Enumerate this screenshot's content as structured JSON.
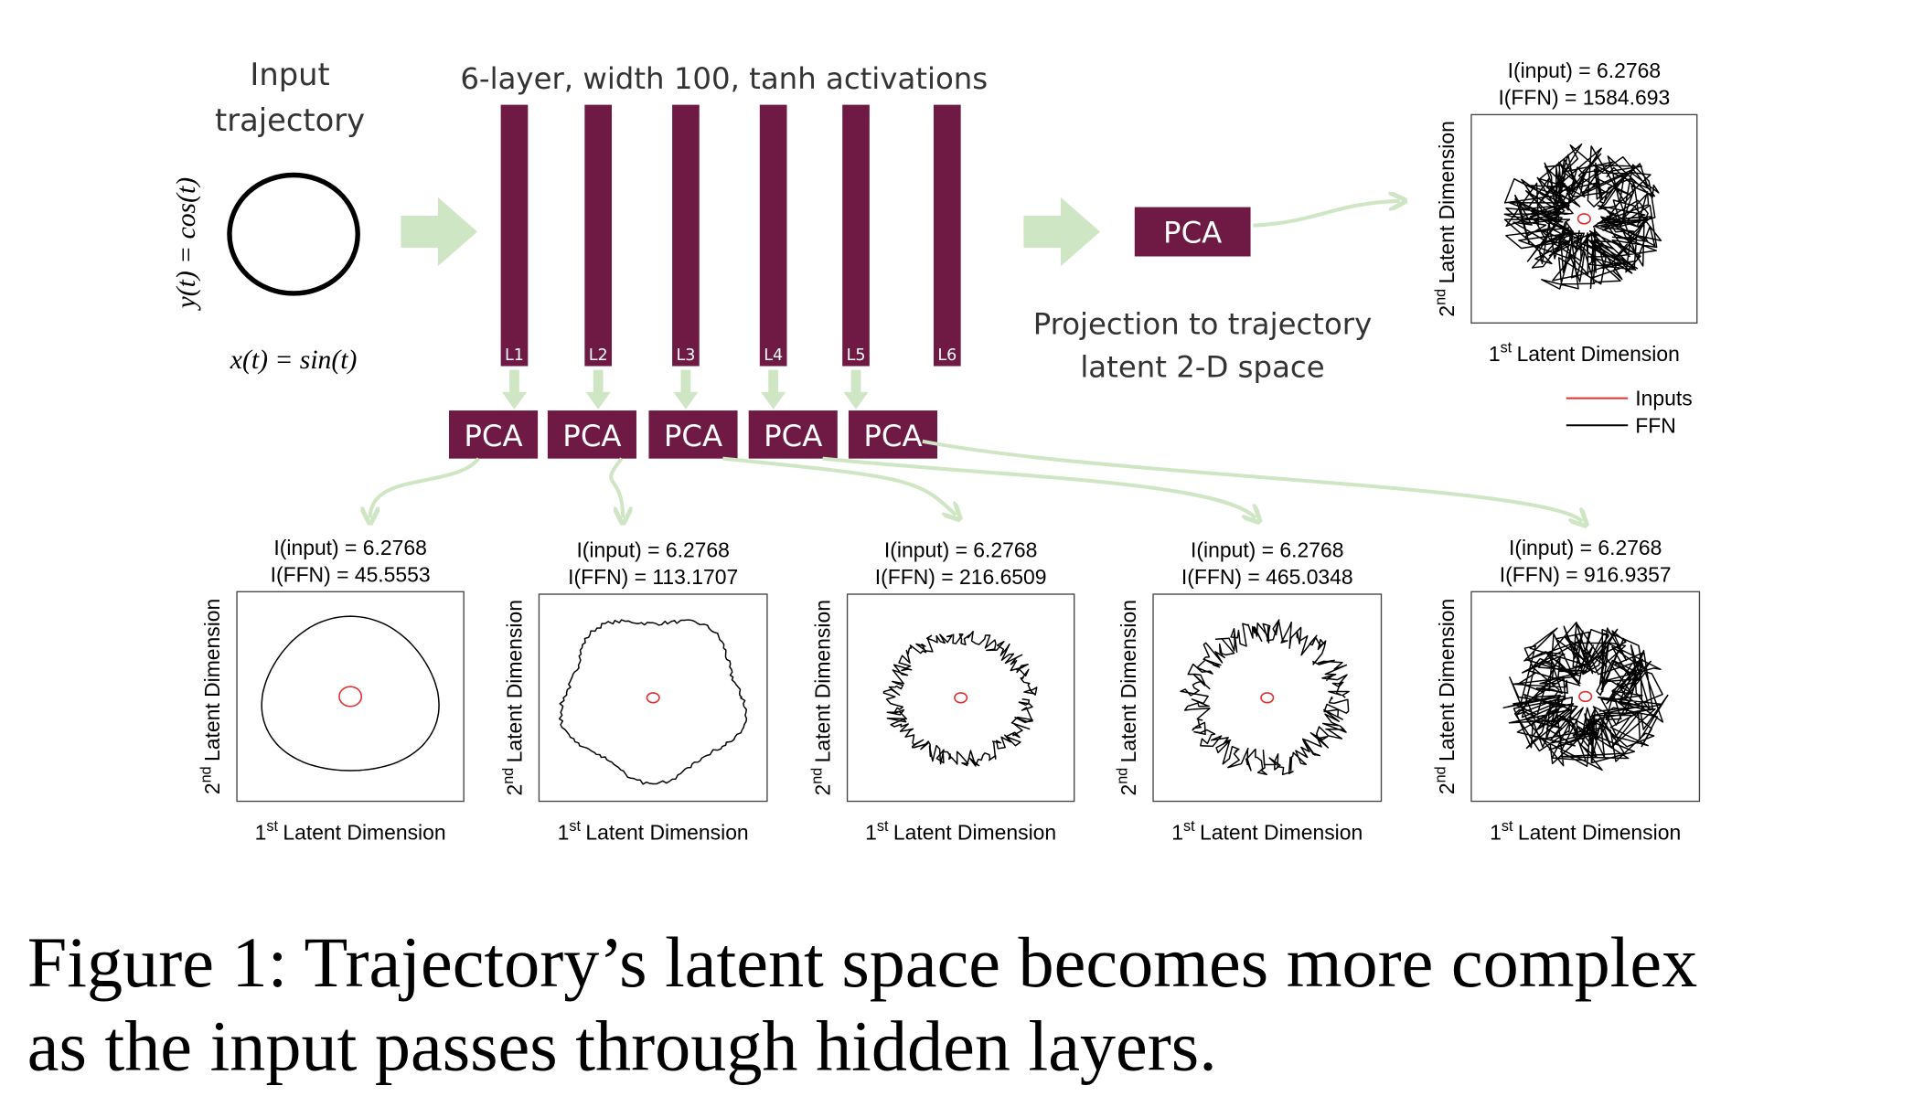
{
  "input": {
    "title": [
      "Input",
      "trajectory"
    ],
    "y_label": "y(t) = cos(t)",
    "x_label": "x(t) = sin(t)"
  },
  "network": {
    "title": "6-layer, width 100, tanh activations",
    "layers": [
      "L1",
      "L2",
      "L3",
      "L4",
      "L5",
      "L6"
    ]
  },
  "pca": [
    "PCA",
    "PCA",
    "PCA",
    "PCA",
    "PCA"
  ],
  "pca_final": "PCA",
  "projection": [
    "Projection to trajectory",
    "latent 2-D space"
  ],
  "plots": [
    {
      "input_info": "I(input) = 6.2768",
      "ffn_info": "I(FFN) = 45.5553",
      "y_label": {
        "num": "2",
        "sup": "nd",
        "text": "Latent Dimension"
      },
      "x_label": {
        "num": "1",
        "sup": "st",
        "text": "Latent Dimension"
      }
    },
    {
      "input_info": "I(input) = 6.2768",
      "ffn_info": "I(FFN) = 113.1707",
      "y_label": {
        "num": "2",
        "sup": "nd",
        "text": "Latent Dimension"
      },
      "x_label": {
        "num": "1",
        "sup": "st",
        "text": "Latent Dimension"
      }
    },
    {
      "input_info": "I(input) = 6.2768",
      "ffn_info": "I(FFN) = 216.6509",
      "y_label": {
        "num": "2",
        "sup": "nd",
        "text": "Latent Dimension"
      },
      "x_label": {
        "num": "1",
        "sup": "st",
        "text": "Latent Dimension"
      }
    },
    {
      "input_info": "I(input) = 6.2768",
      "ffn_info": "I(FFN) = 465.0348",
      "y_label": {
        "num": "2",
        "sup": "nd",
        "text": "Latent Dimension"
      },
      "x_label": {
        "num": "1",
        "sup": "st",
        "text": "Latent Dimension"
      }
    },
    {
      "input_info": "I(input) = 6.2768",
      "ffn_info": "I(FFN) = 916.9357",
      "y_label": {
        "num": "2",
        "sup": "nd",
        "text": "Latent Dimension"
      },
      "x_label": {
        "num": "1",
        "sup": "st",
        "text": "Latent Dimension"
      }
    },
    {
      "input_info": "I(input) = 6.2768",
      "ffn_info": "I(FFN) = 1584.693",
      "y_label": {
        "num": "2",
        "sup": "nd",
        "text": "Latent Dimension"
      },
      "x_label": {
        "num": "1",
        "sup": "st",
        "text": "Latent Dimension"
      }
    }
  ],
  "legend": [
    "Inputs",
    "FFN"
  ],
  "caption": [
    "Figure 1: Trajectory’s latent space becomes more complex",
    "as the input passes through hidden layers."
  ]
}
